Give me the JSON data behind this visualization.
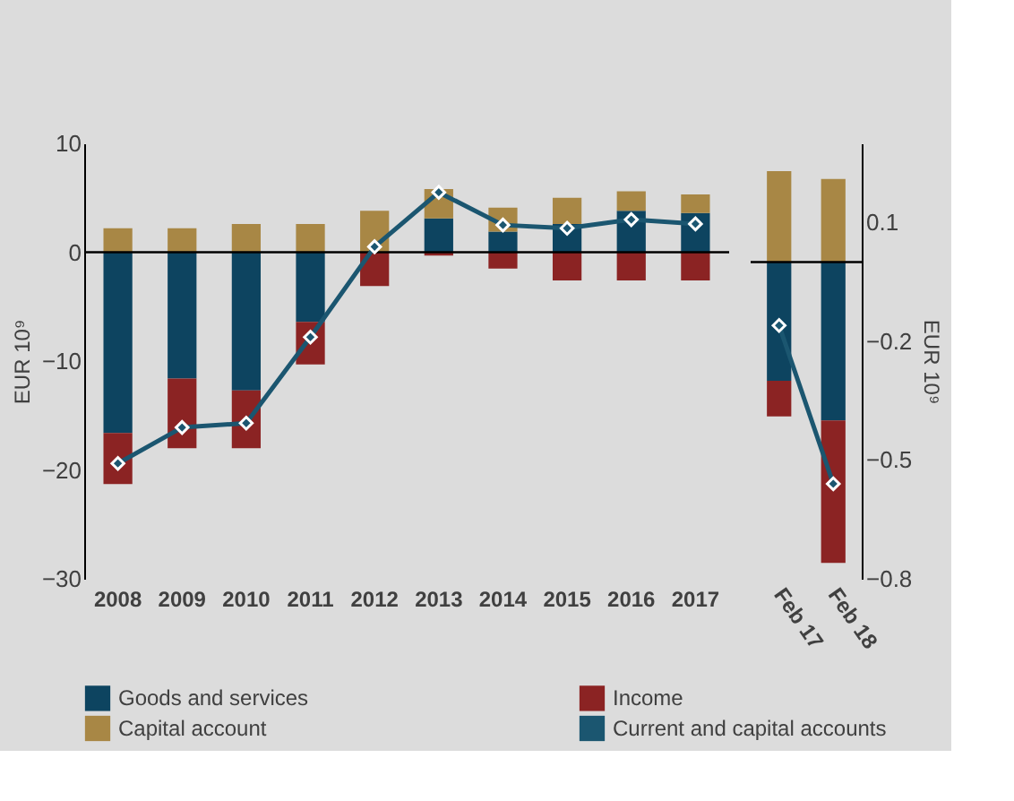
{
  "chart_data": [
    {
      "type": "bar",
      "stacked": true,
      "ylabel": "EUR 10⁹",
      "categories": [
        "2008",
        "2009",
        "2010",
        "2011",
        "2012",
        "2013",
        "2014",
        "2015",
        "2016",
        "2017"
      ],
      "ylim": [
        -30,
        10
      ],
      "yticks": [
        -30,
        -20,
        -10,
        0,
        10
      ],
      "legend": "bottom",
      "ref_lines": [
        {
          "axis": "y",
          "value": 0,
          "color": "#000000"
        }
      ],
      "series": [
        {
          "name": "Goods and services",
          "color": "#0d4460",
          "values": [
            -16.6,
            -11.6,
            -12.7,
            -6.4,
            null,
            3.1,
            1.9,
            2.6,
            3.8,
            3.6
          ]
        },
        {
          "name": "Income",
          "color": "#8b2323",
          "values": [
            -4.7,
            -6.4,
            -5.3,
            -3.9,
            -3.1,
            -0.3,
            -1.5,
            -2.6,
            -2.6,
            -2.6
          ]
        },
        {
          "name": "Capital account",
          "color": "#a88745",
          "values": [
            2.2,
            2.2,
            2.6,
            2.6,
            3.8,
            2.7,
            2.2,
            2.4,
            1.8,
            1.7
          ]
        },
        {
          "name": "Current and capital accounts",
          "type": "line",
          "color": "#1b5670",
          "marker": "diamond",
          "values": [
            -19.4,
            -16.1,
            -15.7,
            -7.8,
            0.5,
            5.5,
            2.5,
            2.2,
            3.0,
            2.6
          ]
        }
      ]
    },
    {
      "type": "bar",
      "stacked": true,
      "y2label": "EUR 10⁹",
      "categories": [
        "Feb 17",
        "Feb 18"
      ],
      "y2lim": [
        -0.8,
        0.3
      ],
      "y2ticks": [
        -0.8,
        -0.5,
        -0.2,
        0.1
      ],
      "ref_lines": [
        {
          "axis": "y2",
          "value": 0,
          "color": "#000000"
        }
      ],
      "series": [
        {
          "color": "#0d4460",
          "axis": "y2",
          "values": [
            -0.3,
            -0.4
          ]
        },
        {
          "color": "#8b2323",
          "axis": "y2",
          "values": [
            -0.09,
            -0.36
          ]
        },
        {
          "color": "#a88745",
          "axis": "y2",
          "values": [
            0.23,
            0.21
          ]
        },
        {
          "type": "line",
          "color": "#1b5670",
          "marker": "diamond",
          "axis": "y2",
          "values": [
            -0.16,
            -0.56
          ]
        }
      ]
    }
  ]
}
